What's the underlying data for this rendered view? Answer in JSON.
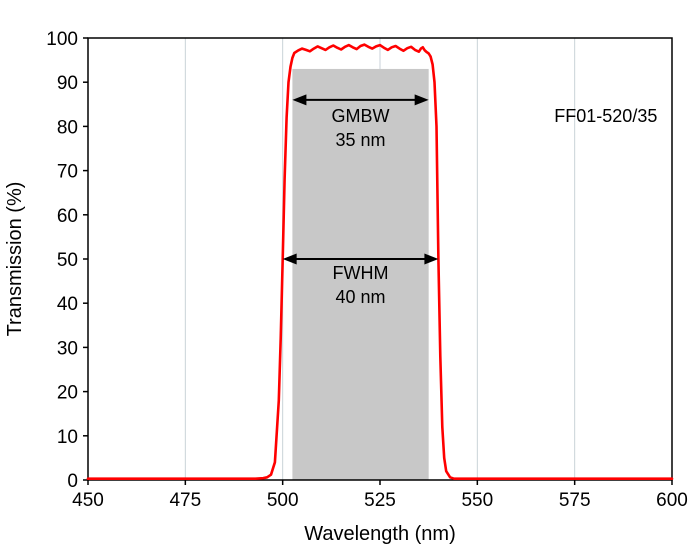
{
  "chart_data": {
    "type": "line",
    "title": "",
    "xlabel": "Wavelength (nm)",
    "ylabel": "Transmission (%)",
    "xlim": [
      450,
      600
    ],
    "ylim": [
      0,
      100
    ],
    "xticks": [
      450,
      475,
      500,
      525,
      550,
      575,
      600
    ],
    "yticks": [
      0,
      10,
      20,
      30,
      40,
      50,
      60,
      70,
      80,
      90,
      100
    ],
    "grid": "vertical",
    "grid_color": "#c9d2d8",
    "legend": "none",
    "shaded_band": {
      "name": "gmbw-region",
      "x_start": 502.5,
      "x_end": 537.5,
      "y_bottom": 0,
      "y_top": 93,
      "color": "#c8c8c8"
    },
    "arrows": [
      {
        "name": "gmbw-arrow",
        "x1": 502.5,
        "x2": 537.5,
        "y": 86
      },
      {
        "name": "fwhm-arrow",
        "x1": 500,
        "x2": 540,
        "y": 50
      }
    ],
    "labels": [
      {
        "name": "gmbw-label",
        "lines": [
          "GMBW",
          "35 nm"
        ],
        "x": 520,
        "y": 81
      },
      {
        "name": "fwhm-label",
        "lines": [
          "FWHM",
          "40 nm"
        ],
        "x": 520,
        "y": 45.5
      },
      {
        "name": "part-number",
        "lines": [
          "FF01-520/35"
        ],
        "x": 583,
        "y": 81
      }
    ],
    "series": [
      {
        "name": "FF01-520/35 transmission",
        "color": "#ff0000",
        "points": [
          [
            450,
            0.3
          ],
          [
            455,
            0.3
          ],
          [
            460,
            0.3
          ],
          [
            465,
            0.3
          ],
          [
            470,
            0.3
          ],
          [
            475,
            0.3
          ],
          [
            480,
            0.3
          ],
          [
            485,
            0.3
          ],
          [
            490,
            0.3
          ],
          [
            493,
            0.3
          ],
          [
            495,
            0.4
          ],
          [
            496,
            0.6
          ],
          [
            497,
            1.2
          ],
          [
            498,
            4
          ],
          [
            499,
            18
          ],
          [
            499.5,
            32
          ],
          [
            500,
            50
          ],
          [
            500.5,
            68
          ],
          [
            501,
            82
          ],
          [
            501.5,
            90
          ],
          [
            502,
            93.5
          ],
          [
            502.5,
            95.5
          ],
          [
            503,
            96.6
          ],
          [
            504,
            97.2
          ],
          [
            505,
            97.6
          ],
          [
            506,
            97.3
          ],
          [
            507,
            97.0
          ],
          [
            508,
            97.6
          ],
          [
            509,
            98.1
          ],
          [
            510,
            97.7
          ],
          [
            511,
            97.3
          ],
          [
            512,
            97.9
          ],
          [
            513,
            98.3
          ],
          [
            514,
            97.8
          ],
          [
            515,
            97.4
          ],
          [
            516,
            98.0
          ],
          [
            517,
            98.4
          ],
          [
            518,
            97.9
          ],
          [
            519,
            97.5
          ],
          [
            520,
            98.2
          ],
          [
            521,
            98.5
          ],
          [
            522,
            98.0
          ],
          [
            523,
            97.6
          ],
          [
            524,
            98.1
          ],
          [
            525,
            98.4
          ],
          [
            526,
            97.8
          ],
          [
            527,
            97.3
          ],
          [
            528,
            97.9
          ],
          [
            529,
            98.2
          ],
          [
            530,
            97.6
          ],
          [
            531,
            97.1
          ],
          [
            532,
            97.7
          ],
          [
            533,
            98.0
          ],
          [
            534,
            97.3
          ],
          [
            535,
            96.9
          ],
          [
            535.5,
            97.6
          ],
          [
            536,
            97.9
          ],
          [
            536.5,
            97.2
          ],
          [
            537,
            96.8
          ],
          [
            537.5,
            96.5
          ],
          [
            538,
            95.8
          ],
          [
            538.5,
            94
          ],
          [
            539,
            90
          ],
          [
            539.5,
            80
          ],
          [
            540,
            50
          ],
          [
            540.5,
            28
          ],
          [
            541,
            12
          ],
          [
            541.5,
            5
          ],
          [
            542,
            2
          ],
          [
            543,
            0.6
          ],
          [
            544,
            0.3
          ],
          [
            546,
            0.3
          ],
          [
            550,
            0.3
          ],
          [
            555,
            0.3
          ],
          [
            560,
            0.3
          ],
          [
            565,
            0.3
          ],
          [
            570,
            0.3
          ],
          [
            575,
            0.3
          ],
          [
            580,
            0.3
          ],
          [
            585,
            0.3
          ],
          [
            590,
            0.3
          ],
          [
            595,
            0.3
          ],
          [
            600,
            0.3
          ]
        ]
      }
    ]
  }
}
